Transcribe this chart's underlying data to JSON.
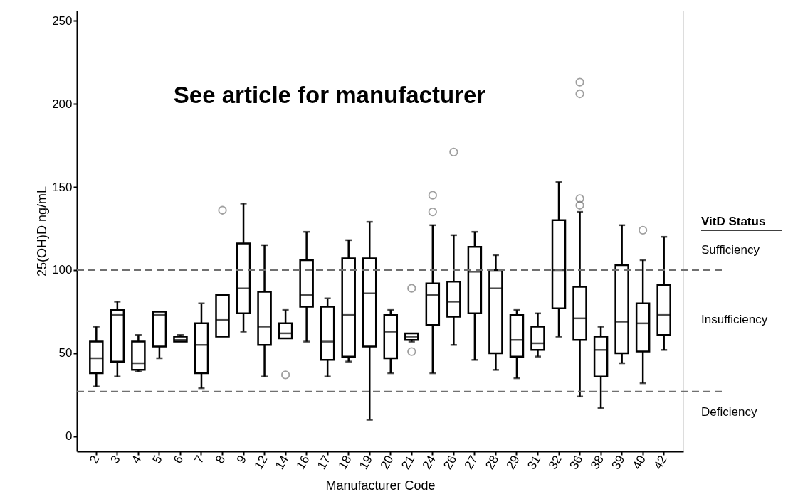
{
  "chart_data": {
    "type": "box",
    "title": "See article for manufacturer",
    "xlabel": "Manufacturer Code",
    "ylabel": "25(OH)D ng/mL",
    "categories": [
      "2",
      "3",
      "4",
      "5",
      "6",
      "7",
      "8",
      "9",
      "12",
      "14",
      "16",
      "17",
      "18",
      "19",
      "20",
      "21",
      "24",
      "26",
      "27",
      "28",
      "29",
      "31",
      "32",
      "36",
      "38",
      "39",
      "40",
      "42"
    ],
    "boxes": [
      {
        "low": 30,
        "q1": 38,
        "median": 47,
        "q3": 57,
        "high": 66
      },
      {
        "low": 36,
        "q1": 45,
        "median": 73,
        "q3": 76,
        "high": 81
      },
      {
        "low": 39,
        "q1": 40,
        "median": 44,
        "q3": 57,
        "high": 61
      },
      {
        "low": 47,
        "q1": 54,
        "median": 73,
        "q3": 75,
        "high": 75
      },
      {
        "low": 57,
        "q1": 57,
        "median": 58,
        "q3": 60,
        "high": 61
      },
      {
        "low": 29,
        "q1": 38,
        "median": 55,
        "q3": 68,
        "high": 80
      },
      {
        "low": 60,
        "q1": 60,
        "median": 70,
        "q3": 85,
        "high": 85,
        "outliers": [
          136
        ]
      },
      {
        "low": 63,
        "q1": 74,
        "median": 89,
        "q3": 116,
        "high": 140
      },
      {
        "low": 36,
        "q1": 55,
        "median": 66,
        "q3": 87,
        "high": 115
      },
      {
        "low": 59,
        "q1": 59,
        "median": 62,
        "q3": 68,
        "high": 76,
        "outliers": [
          37
        ]
      },
      {
        "low": 57,
        "q1": 78,
        "median": 85,
        "q3": 106,
        "high": 123
      },
      {
        "low": 36,
        "q1": 46,
        "median": 57,
        "q3": 78,
        "high": 83
      },
      {
        "low": 45,
        "q1": 48,
        "median": 73,
        "q3": 107,
        "high": 118
      },
      {
        "low": 10,
        "q1": 54,
        "median": 86,
        "q3": 107,
        "high": 129
      },
      {
        "low": 38,
        "q1": 47,
        "median": 63,
        "q3": 73,
        "high": 76
      },
      {
        "low": 57,
        "q1": 58,
        "median": 60,
        "q3": 62,
        "high": 62,
        "outliers": [
          89,
          51
        ]
      },
      {
        "low": 38,
        "q1": 67,
        "median": 85,
        "q3": 92,
        "high": 127,
        "outliers": [
          145,
          135
        ]
      },
      {
        "low": 55,
        "q1": 72,
        "median": 81,
        "q3": 93,
        "high": 121,
        "outliers": [
          171
        ]
      },
      {
        "low": 46,
        "q1": 74,
        "median": 99,
        "q3": 114,
        "high": 123
      },
      {
        "low": 40,
        "q1": 50,
        "median": 89,
        "q3": 100,
        "high": 109
      },
      {
        "low": 35,
        "q1": 48,
        "median": 58,
        "q3": 73,
        "high": 76
      },
      {
        "low": 48,
        "q1": 52,
        "median": 56,
        "q3": 66,
        "high": 74
      },
      {
        "low": 60,
        "q1": 77,
        "median": 100,
        "q3": 130,
        "high": 153
      },
      {
        "low": 24,
        "q1": 58,
        "median": 71,
        "q3": 90,
        "high": 135,
        "outliers": [
          213,
          206,
          143,
          139
        ]
      },
      {
        "low": 17,
        "q1": 36,
        "median": 52,
        "q3": 60,
        "high": 66
      },
      {
        "low": 44,
        "q1": 50,
        "median": 69,
        "q3": 103,
        "high": 127
      },
      {
        "low": 32,
        "q1": 51,
        "median": 68,
        "q3": 80,
        "high": 106,
        "outliers": [
          124
        ]
      },
      {
        "low": 52,
        "q1": 61,
        "median": 73,
        "q3": 91,
        "high": 120
      }
    ],
    "ylim": [
      -9,
      256
    ],
    "yticks": [
      0,
      50,
      100,
      150,
      200,
      250
    ],
    "grid": false,
    "ref_lines": [
      {
        "axis": "y",
        "value": 100,
        "color": "#707070",
        "line_style": "dashed"
      },
      {
        "axis": "y",
        "value": 27,
        "color": "#707070",
        "line_style": "dashed"
      }
    ],
    "annotations": [
      "VitD Status",
      "Sufficiency",
      "Insufficiency",
      "Deficiency"
    ]
  }
}
